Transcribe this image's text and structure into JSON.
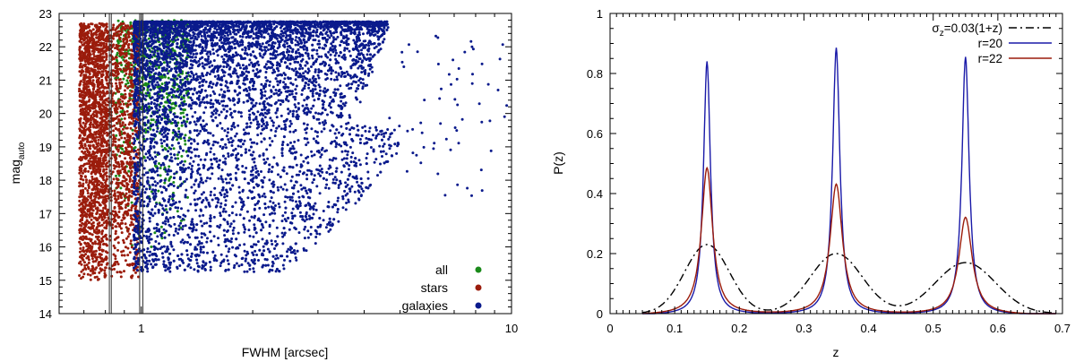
{
  "chart_data": [
    {
      "type": "scatter",
      "xlabel": "FWHM [arcsec]",
      "ylabel_base": "mag",
      "ylabel_sub": "auto",
      "x_scale": "log",
      "xlim": [
        0.6,
        10
      ],
      "ylim": [
        14,
        23
      ],
      "x_ticks": [
        {
          "value": 1,
          "label": "1"
        },
        {
          "value": 10,
          "label": "10"
        }
      ],
      "y_ticks": [
        {
          "value": 14,
          "label": "14"
        },
        {
          "value": 15,
          "label": "15"
        },
        {
          "value": 16,
          "label": "16"
        },
        {
          "value": 17,
          "label": "17"
        },
        {
          "value": 18,
          "label": "18"
        },
        {
          "value": 19,
          "label": "19"
        },
        {
          "value": 20,
          "label": "20"
        },
        {
          "value": 21,
          "label": "21"
        },
        {
          "value": 22,
          "label": "22"
        },
        {
          "value": 23,
          "label": "23"
        }
      ],
      "vertical_lines": [
        0.82,
        0.83,
        0.99,
        1.01
      ],
      "legend_position": "bottom-right",
      "series": [
        {
          "name": "all",
          "color": "#1a8a1a",
          "x_range": [
            0.8,
            1.35
          ],
          "y_range": [
            15.0,
            22.8
          ]
        },
        {
          "name": "stars",
          "color": "#9b1c0c",
          "x_range": [
            0.65,
            1.0
          ],
          "y_range": [
            15.0,
            22.7
          ]
        },
        {
          "name": "galaxies",
          "color": "#0a1a8c",
          "x_range": [
            0.95,
            9.5
          ],
          "y_range": [
            15.2,
            22.8
          ]
        }
      ]
    },
    {
      "type": "line",
      "xlabel": "z",
      "ylabel": "P(z)",
      "xlim": [
        0,
        0.7
      ],
      "ylim": [
        0,
        1
      ],
      "x_ticks": [
        {
          "value": 0,
          "label": "0"
        },
        {
          "value": 0.1,
          "label": "0.1"
        },
        {
          "value": 0.2,
          "label": "0.2"
        },
        {
          "value": 0.3,
          "label": "0.3"
        },
        {
          "value": 0.4,
          "label": "0.4"
        },
        {
          "value": 0.5,
          "label": "0.5"
        },
        {
          "value": 0.6,
          "label": "0.6"
        },
        {
          "value": 0.7,
          "label": "0.7"
        }
      ],
      "y_ticks": [
        {
          "value": 0,
          "label": "0"
        },
        {
          "value": 0.2,
          "label": "0.2"
        },
        {
          "value": 0.4,
          "label": "0.4"
        },
        {
          "value": 0.6,
          "label": "0.6"
        },
        {
          "value": 0.8,
          "label": "0.8"
        },
        {
          "value": 1,
          "label": "1"
        }
      ],
      "legend_position": "top-right",
      "series": [
        {
          "name": "σz=0.03(1+z)",
          "label_base": "σ",
          "label_sub": "z",
          "label_rest": "=0.03(1+z)",
          "color": "#000000",
          "style": "dash-dot",
          "centers": [
            0.15,
            0.35,
            0.55
          ],
          "peaks": [
            0.23,
            0.2,
            0.17
          ],
          "widths": [
            0.0345,
            0.0405,
            0.0465
          ]
        },
        {
          "name": "r=20",
          "color": "#1a1aa8",
          "style": "solid",
          "centers": [
            0.15,
            0.35,
            0.55
          ],
          "peaks": [
            0.845,
            0.89,
            0.86
          ],
          "widths": [
            0.0065,
            0.0068,
            0.0068
          ]
        },
        {
          "name": "r=22",
          "color": "#9b1c0c",
          "style": "solid",
          "centers": [
            0.15,
            0.35,
            0.55
          ],
          "peaks": [
            0.49,
            0.435,
            0.325
          ],
          "widths": [
            0.0105,
            0.0115,
            0.0125
          ]
        }
      ]
    }
  ]
}
